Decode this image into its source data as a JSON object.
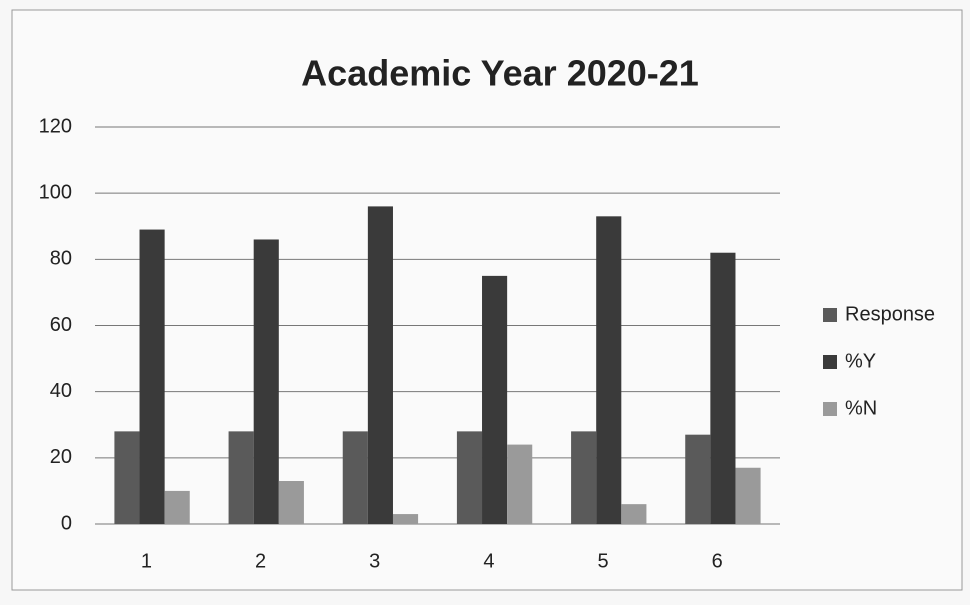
{
  "chart_data": {
    "type": "bar",
    "title": "Academic Year 2020-21",
    "categories": [
      "1",
      "2",
      "3",
      "4",
      "5",
      "6"
    ],
    "series": [
      {
        "name": "Response",
        "color": "#5a5a5a",
        "values": [
          28,
          28,
          28,
          28,
          28,
          27
        ]
      },
      {
        "name": "%Y",
        "color": "#3a3a3a",
        "values": [
          89,
          86,
          96,
          75,
          93,
          82
        ]
      },
      {
        "name": "%N",
        "color": "#9a9a9a",
        "values": [
          10,
          13,
          3,
          24,
          6,
          17
        ]
      }
    ],
    "ylim": [
      0,
      120
    ],
    "yticks": [
      0,
      20,
      40,
      60,
      80,
      100,
      120
    ],
    "grid": true,
    "legend": "right"
  }
}
